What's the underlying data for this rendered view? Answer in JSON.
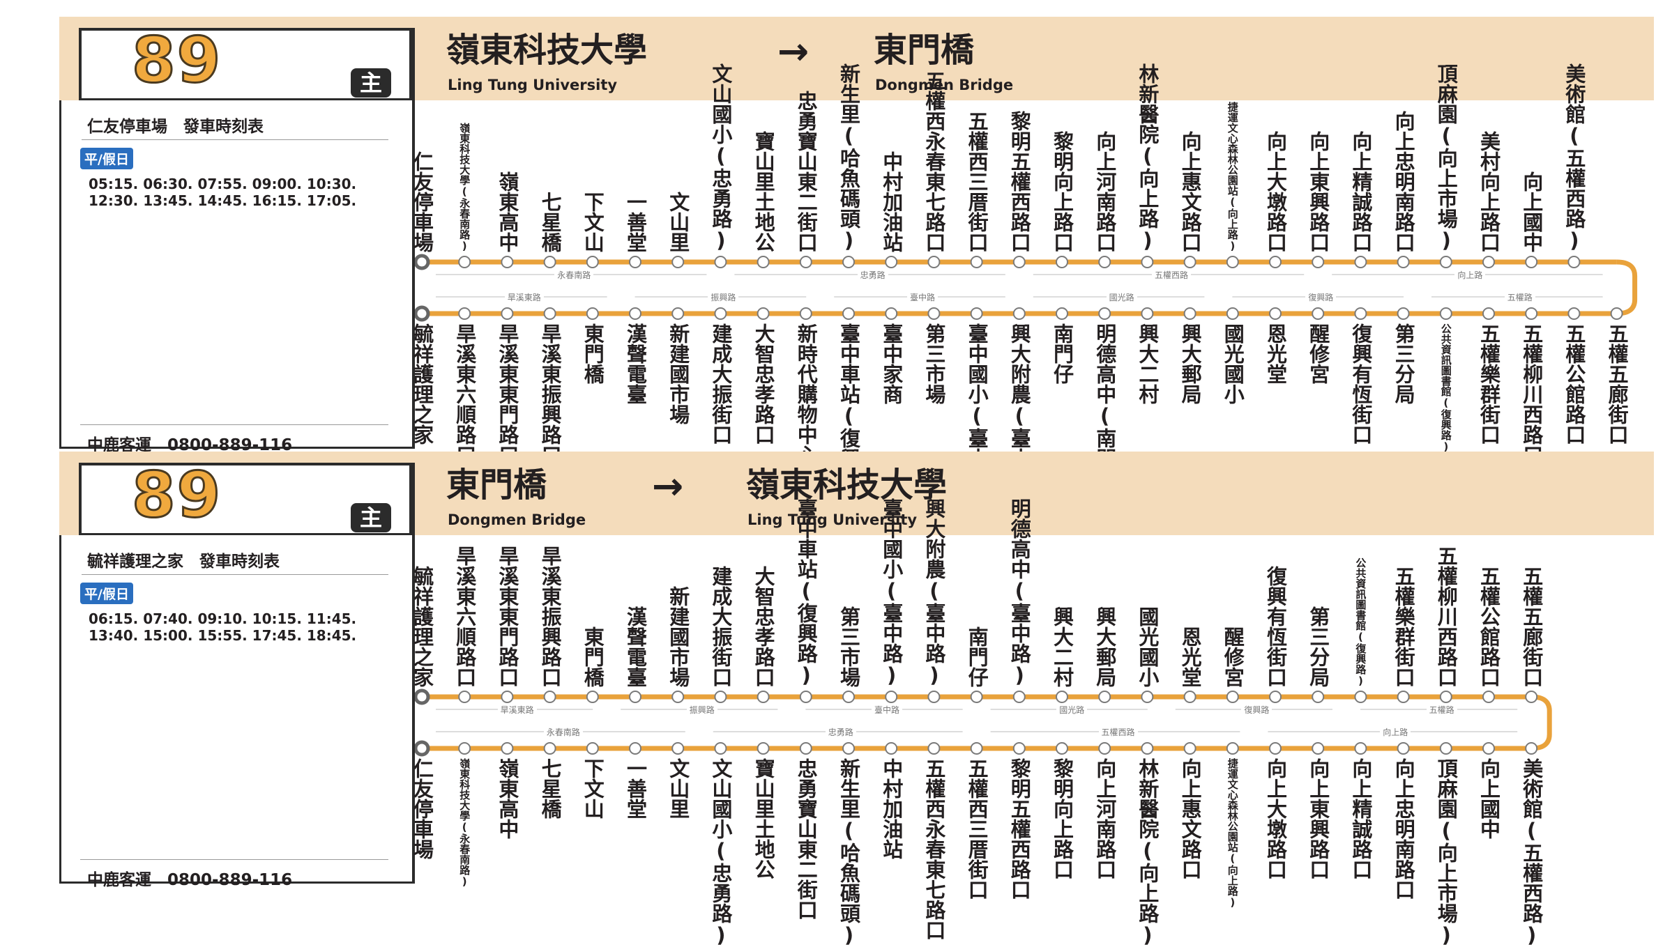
{
  "colors": {
    "header_band": "#f4dcbb",
    "route_line": "#e9a23b",
    "badge": "#2a6ebf",
    "route_number": "#f0a93e"
  },
  "panels": [
    {
      "route_number": "89",
      "main_badge": "主",
      "from_zh": "嶺東科技大學",
      "from_en": "Ling Tung University",
      "arrow": "→",
      "to_zh": "東門橋",
      "to_en": "Dongmen Bridge",
      "schedule_title": "仁友停車場　發車時刻表",
      "day_badge": "平/假日",
      "times_line1": "05:15. 06:30. 07:55. 09:00. 10:30.",
      "times_line2": "12:30. 13:45. 14:45. 16:15. 17:05.",
      "company": "中鹿客運　0800-889-116",
      "top_stops": [
        "仁友停車場",
        "嶺東科技大學(永春南路)",
        "嶺東高中",
        "七星橋",
        "下文山",
        "一善堂",
        "文山里",
        "文山國小(忠勇路)",
        "寶山里土地公",
        "忠勇寶山東二街口",
        "新生里(哈魚碼頭)",
        "中村加油站",
        "五權西永春東七路口",
        "五權西三厝街口",
        "黎明五權西路口",
        "黎明向上路口",
        "向上河南路口",
        "林新醫院(向上路)",
        "向上惠文路口",
        "捷運文心森林公園站(向上路)",
        "向上大墩路口",
        "向上東興路口",
        "向上精誠路口",
        "向上忠明南路口",
        "頂麻園(向上市場)",
        "美村向上路口",
        "向上國中",
        "美術館(五權西路)"
      ],
      "top_roads": [
        "永春南路",
        "忠勇路",
        "五權西路",
        "向上路"
      ],
      "bottom_roads": [
        "旱溪東路",
        "振興路",
        "臺中路",
        "國光路",
        "復興路",
        "五權路"
      ],
      "bottom_stops": [
        "毓祥護理之家",
        "旱溪東六順路口",
        "旱溪東東門路口",
        "旱溪東振興路口",
        "東門橋",
        "漢聲電臺",
        "新建國市場",
        "建成大振街口",
        "大智忠孝路口",
        "新時代購物中心",
        "臺中車站(復興路)",
        "臺中家商",
        "第三市場",
        "臺中國小(臺中路)",
        "興大附農(臺中路)",
        "南門仔",
        "明德高中(南門路)",
        "興大二村",
        "興大郵局",
        "國光國小",
        "恩光堂",
        "醒修宮",
        "復興有恆街口",
        "第三分局",
        "公共資訊圖書館(復興路)",
        "五權樂群街口",
        "五權柳川西路口",
        "五權公館路口",
        "五權五廊街口"
      ]
    },
    {
      "route_number": "89",
      "main_badge": "主",
      "from_zh": "東門橋",
      "from_en": "Dongmen Bridge",
      "arrow": "→",
      "to_zh": "嶺東科技大學",
      "to_en": "Ling Tung University",
      "schedule_title": "毓祥護理之家　發車時刻表",
      "day_badge": "平/假日",
      "times_line1": "06:15. 07:40. 09:10. 10:15. 11:45.",
      "times_line2": "13:40. 15:00. 15:55. 17:45. 18:45.",
      "company": "中鹿客運　0800-889-116",
      "top_stops": [
        "毓祥護理之家",
        "旱溪東六順路口",
        "旱溪東東門路口",
        "旱溪東振興路口",
        "東門橋",
        "漢聲電臺",
        "新建國市場",
        "建成大振街口",
        "大智忠孝路口",
        "臺中車站(復興路)",
        "第三市場",
        "臺中國小(臺中路)",
        "興大附農(臺中路)",
        "南門仔",
        "明德高中(臺中路)",
        "興大二村",
        "興大郵局",
        "國光國小",
        "恩光堂",
        "醒修宮",
        "復興有恆街口",
        "第三分局",
        "公共資訊圖書館(復興路)",
        "五權樂群街口",
        "五權柳川西路口",
        "五權公館路口",
        "五權五廊街口"
      ],
      "top_roads": [
        "旱溪東路",
        "振興路",
        "臺中路",
        "國光路",
        "復興路",
        "五權路"
      ],
      "bottom_roads": [
        "永春南路",
        "忠勇路",
        "五權西路",
        "向上路"
      ],
      "bottom_stops": [
        "仁友停車場",
        "嶺東科技大學(永春南路)",
        "嶺東高中",
        "七星橋",
        "下文山",
        "一善堂",
        "文山里",
        "文山國小(忠勇路)",
        "寶山里土地公",
        "忠勇寶山東二街口",
        "新生里(哈魚碼頭)",
        "中村加油站",
        "五權西永春東七路口",
        "五權西三厝街口",
        "黎明五權西路口",
        "黎明向上路口",
        "向上河南路口",
        "林新醫院(向上路)",
        "向上惠文路口",
        "捷運文心森林公園站(向上路)",
        "向上大墩路口",
        "向上東興路口",
        "向上精誠路口",
        "向上忠明南路口",
        "頂麻園(向上市場)",
        "向上國中",
        "美術館(五權西路)"
      ]
    }
  ]
}
